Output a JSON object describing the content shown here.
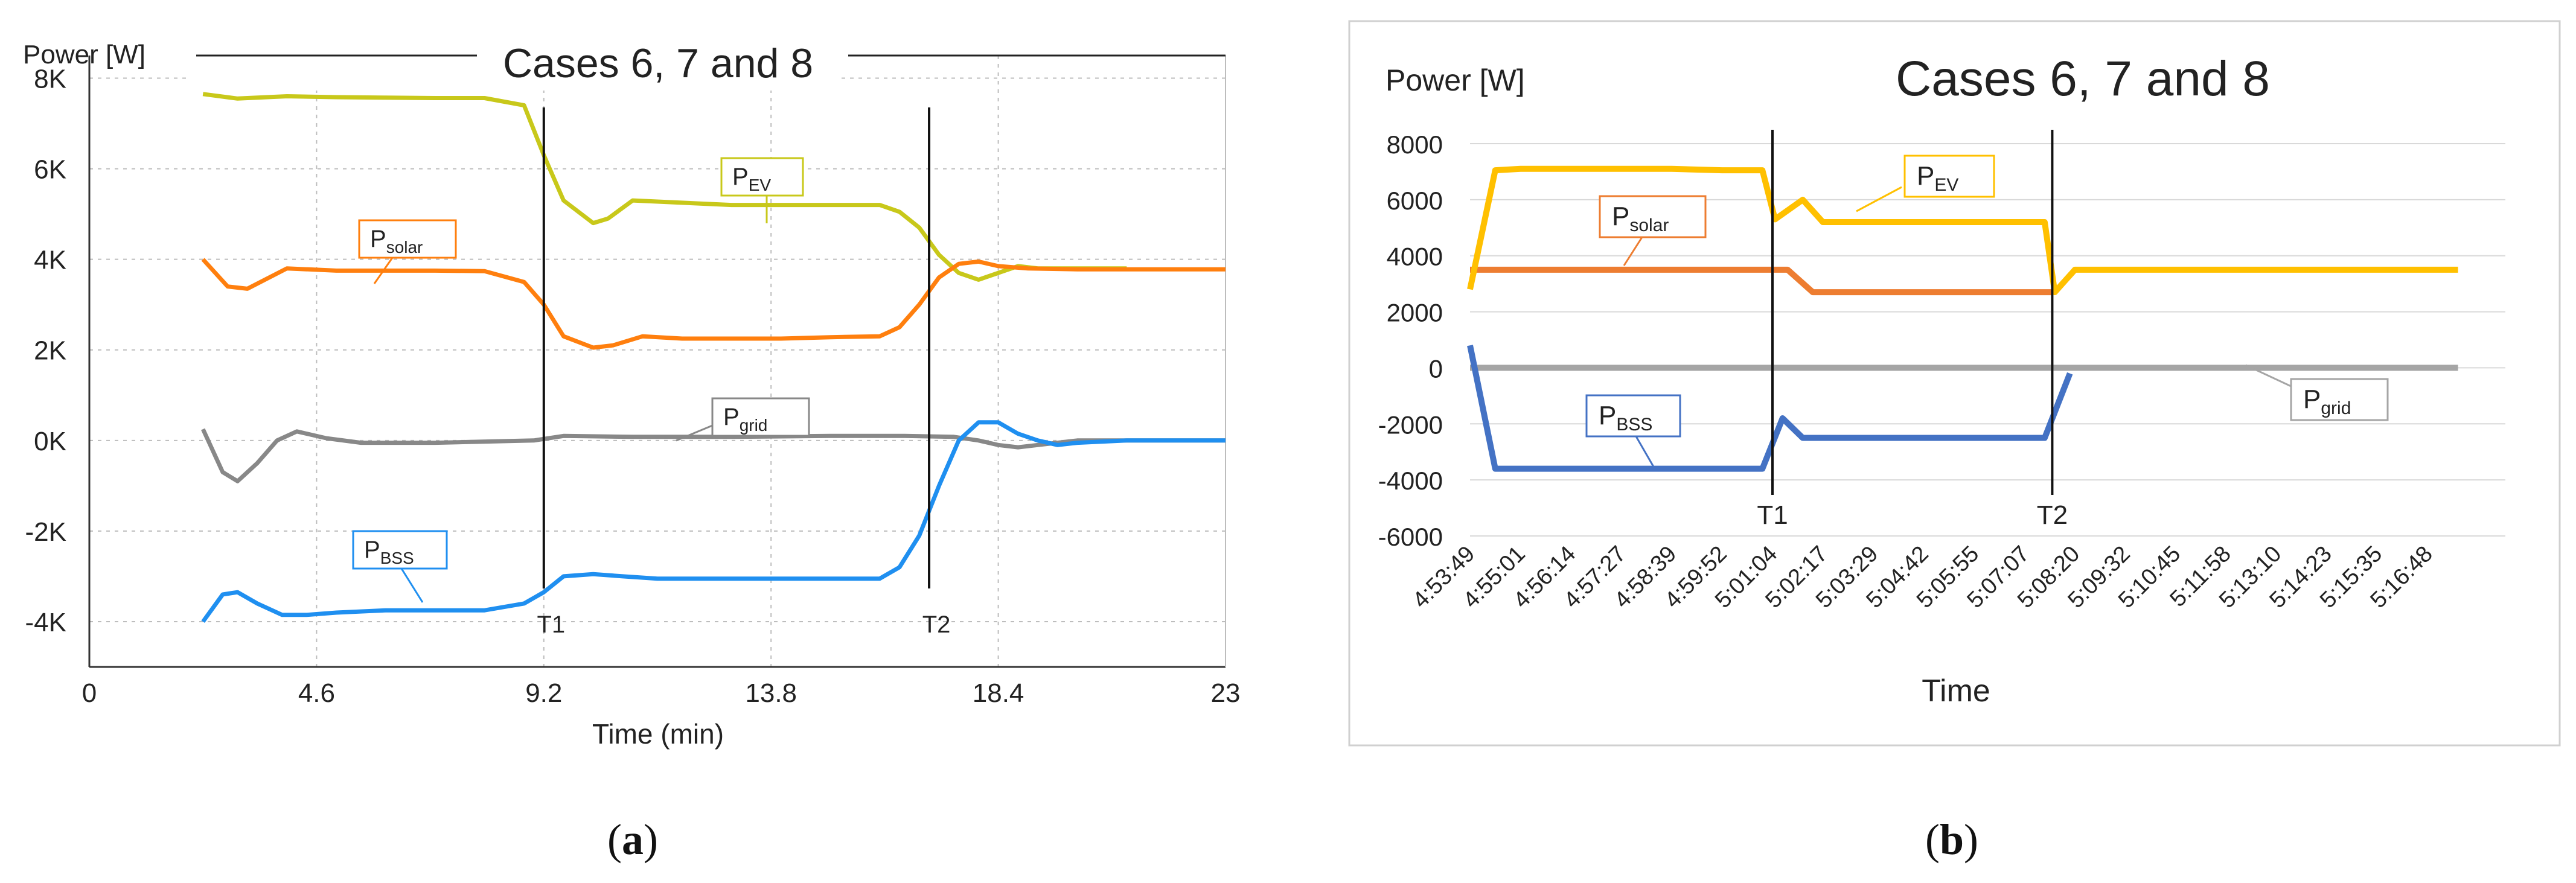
{
  "chart_data": [
    {
      "type": "line",
      "title": "Cases 6, 7 and 8",
      "ylabel": "Power [W]",
      "xlabel": "Time (min)",
      "xlim": [
        0,
        23
      ],
      "ylim": [
        -5000,
        8500
      ],
      "x_ticks": [
        "0",
        "4.6",
        "9.2",
        "13.8",
        "18.4",
        "23"
      ],
      "y_ticks": [
        "8K",
        "6K",
        "4K",
        "2K",
        "0K",
        "-2K",
        "-4K"
      ],
      "grid": true,
      "markers": [
        {
          "label": "T1",
          "x": 9.2
        },
        {
          "label": "T2",
          "x": 17.0
        }
      ],
      "series": [
        {
          "name": "P_EV",
          "label_main": "P",
          "label_sub": "EV",
          "color": "#c8c81a",
          "x": [
            2.3,
            3.0,
            4.0,
            5.0,
            6.0,
            7.0,
            8.0,
            8.8,
            9.2,
            9.6,
            10.2,
            10.5,
            11.0,
            12.0,
            13.0,
            14.0,
            15.0,
            16.0,
            16.4,
            16.8,
            17.2,
            17.6,
            18.0,
            18.4,
            18.8,
            19.2,
            20.0,
            21.0
          ],
          "y": [
            7650,
            7550,
            7600,
            7580,
            7570,
            7560,
            7560,
            7400,
            6300,
            5300,
            4800,
            4900,
            5300,
            5250,
            5200,
            5200,
            5200,
            5200,
            5050,
            4700,
            4100,
            3700,
            3550,
            3700,
            3850,
            3800,
            3800,
            3800
          ]
        },
        {
          "name": "P_solar",
          "label_main": "P",
          "label_sub": "solar",
          "color": "#ff7f0e",
          "x": [
            2.3,
            2.8,
            3.2,
            4.0,
            5.0,
            6.0,
            7.0,
            8.0,
            8.8,
            9.2,
            9.6,
            10.2,
            10.6,
            11.2,
            12.0,
            13.0,
            14.0,
            15.0,
            16.0,
            16.4,
            16.8,
            17.2,
            17.6,
            18.0,
            18.4,
            19.0,
            20.0,
            21.0,
            22.0,
            23.0
          ],
          "y": [
            4000,
            3400,
            3350,
            3800,
            3750,
            3750,
            3750,
            3740,
            3500,
            3000,
            2300,
            2050,
            2100,
            2300,
            2250,
            2250,
            2250,
            2280,
            2300,
            2500,
            3000,
            3600,
            3900,
            3950,
            3850,
            3800,
            3780,
            3780,
            3780,
            3780
          ]
        },
        {
          "name": "P_grid",
          "label_main": "P",
          "label_sub": "grid",
          "color": "#888888",
          "x": [
            2.3,
            2.7,
            3.0,
            3.4,
            3.8,
            4.2,
            4.8,
            5.5,
            7.0,
            9.0,
            9.6,
            11.0,
            13.0,
            15.0,
            16.5,
            17.5,
            18.0,
            18.4,
            18.8,
            19.2,
            20.0,
            21.0,
            23.0
          ],
          "y": [
            250,
            -700,
            -900,
            -500,
            0,
            200,
            50,
            -50,
            -50,
            0,
            100,
            80,
            80,
            100,
            100,
            80,
            0,
            -100,
            -150,
            -100,
            0,
            0,
            0
          ]
        },
        {
          "name": "P_BSS",
          "label_main": "P",
          "label_sub": "BSS",
          "color": "#1f8ff0",
          "x": [
            2.3,
            2.7,
            3.0,
            3.4,
            3.9,
            4.4,
            5.0,
            6.0,
            7.0,
            8.0,
            8.8,
            9.2,
            9.6,
            10.2,
            10.8,
            11.5,
            12.0,
            13.0,
            14.0,
            15.0,
            16.0,
            16.4,
            16.8,
            17.2,
            17.6,
            18.0,
            18.4,
            18.8,
            19.2,
            19.6,
            20.0,
            21.0,
            23.0
          ],
          "y": [
            -4000,
            -3400,
            -3350,
            -3600,
            -3850,
            -3850,
            -3800,
            -3750,
            -3750,
            -3750,
            -3600,
            -3350,
            -3000,
            -2950,
            -3000,
            -3050,
            -3050,
            -3050,
            -3050,
            -3050,
            -3050,
            -2800,
            -2100,
            -1000,
            0,
            400,
            400,
            150,
            0,
            -100,
            -50,
            0,
            0
          ]
        }
      ]
    },
    {
      "type": "line",
      "title": "Cases 6, 7 and 8",
      "ylabel": "Power [W]",
      "xlabel": "Time",
      "ylim": [
        -6000,
        8000
      ],
      "y_ticks": [
        "8000",
        "6000",
        "4000",
        "2000",
        "0",
        "-2000",
        "-4000",
        "-6000"
      ],
      "categories": [
        "4:53:49",
        "4:55:01",
        "4:56:14",
        "4:57:27",
        "4:58:39",
        "4:59:52",
        "5:01:04",
        "5:02:17",
        "5:03:29",
        "5:04:42",
        "5:05:55",
        "5:07:07",
        "5:08:20",
        "5:09:32",
        "5:10:45",
        "5:11:58",
        "5:13:10",
        "5:14:23",
        "5:15:35",
        "5:16:48"
      ],
      "grid": true,
      "markers": [
        {
          "label": "T1",
          "x": 6.0
        },
        {
          "label": "T2",
          "x": 11.55
        }
      ],
      "series": [
        {
          "name": "P_EV",
          "label_main": "P",
          "label_sub": "EV",
          "color": "#ffc000",
          "x": [
            0,
            0.5,
            1,
            2,
            3,
            4,
            5,
            5.8,
            6.05,
            6.6,
            7.0,
            8,
            9,
            10,
            11,
            11.4,
            11.6,
            12.0,
            13,
            14,
            15,
            16,
            17,
            18,
            19,
            19.6
          ],
          "y": [
            2800,
            7050,
            7100,
            7100,
            7100,
            7100,
            7050,
            7050,
            5300,
            6000,
            5200,
            5200,
            5200,
            5200,
            5200,
            5200,
            2700,
            3500,
            3500,
            3500,
            3500,
            3500,
            3500,
            3500,
            3500,
            3500
          ]
        },
        {
          "name": "P_solar",
          "label_main": "P",
          "label_sub": "solar",
          "color": "#ed7d31",
          "x": [
            0,
            1,
            2,
            3,
            4,
            5,
            6.3,
            6.8,
            8,
            9,
            10,
            11,
            11.55
          ],
          "y": [
            3500,
            3500,
            3500,
            3500,
            3500,
            3500,
            3500,
            2700,
            2700,
            2700,
            2700,
            2700,
            2700
          ]
        },
        {
          "name": "P_grid",
          "label_main": "P",
          "label_sub": "grid",
          "color": "#a5a5a5",
          "x": [
            0,
            19.6
          ],
          "y": [
            0,
            0
          ]
        },
        {
          "name": "P_BSS",
          "label_main": "P",
          "label_sub": "BSS",
          "color": "#4472c4",
          "x": [
            0,
            0.5,
            1,
            2,
            3,
            4,
            5,
            5.8,
            6.2,
            6.6,
            7,
            8,
            9,
            10,
            11,
            11.4,
            11.9
          ],
          "y": [
            800,
            -3600,
            -3600,
            -3600,
            -3600,
            -3600,
            -3600,
            -3600,
            -1800,
            -2500,
            -2500,
            -2500,
            -2500,
            -2500,
            -2500,
            -2500,
            -200
          ]
        }
      ]
    }
  ],
  "captions": {
    "a": {
      "open": "(",
      "letter": "a",
      "close": ")"
    },
    "b": {
      "open": "(",
      "letter": "b",
      "close": ")"
    }
  }
}
